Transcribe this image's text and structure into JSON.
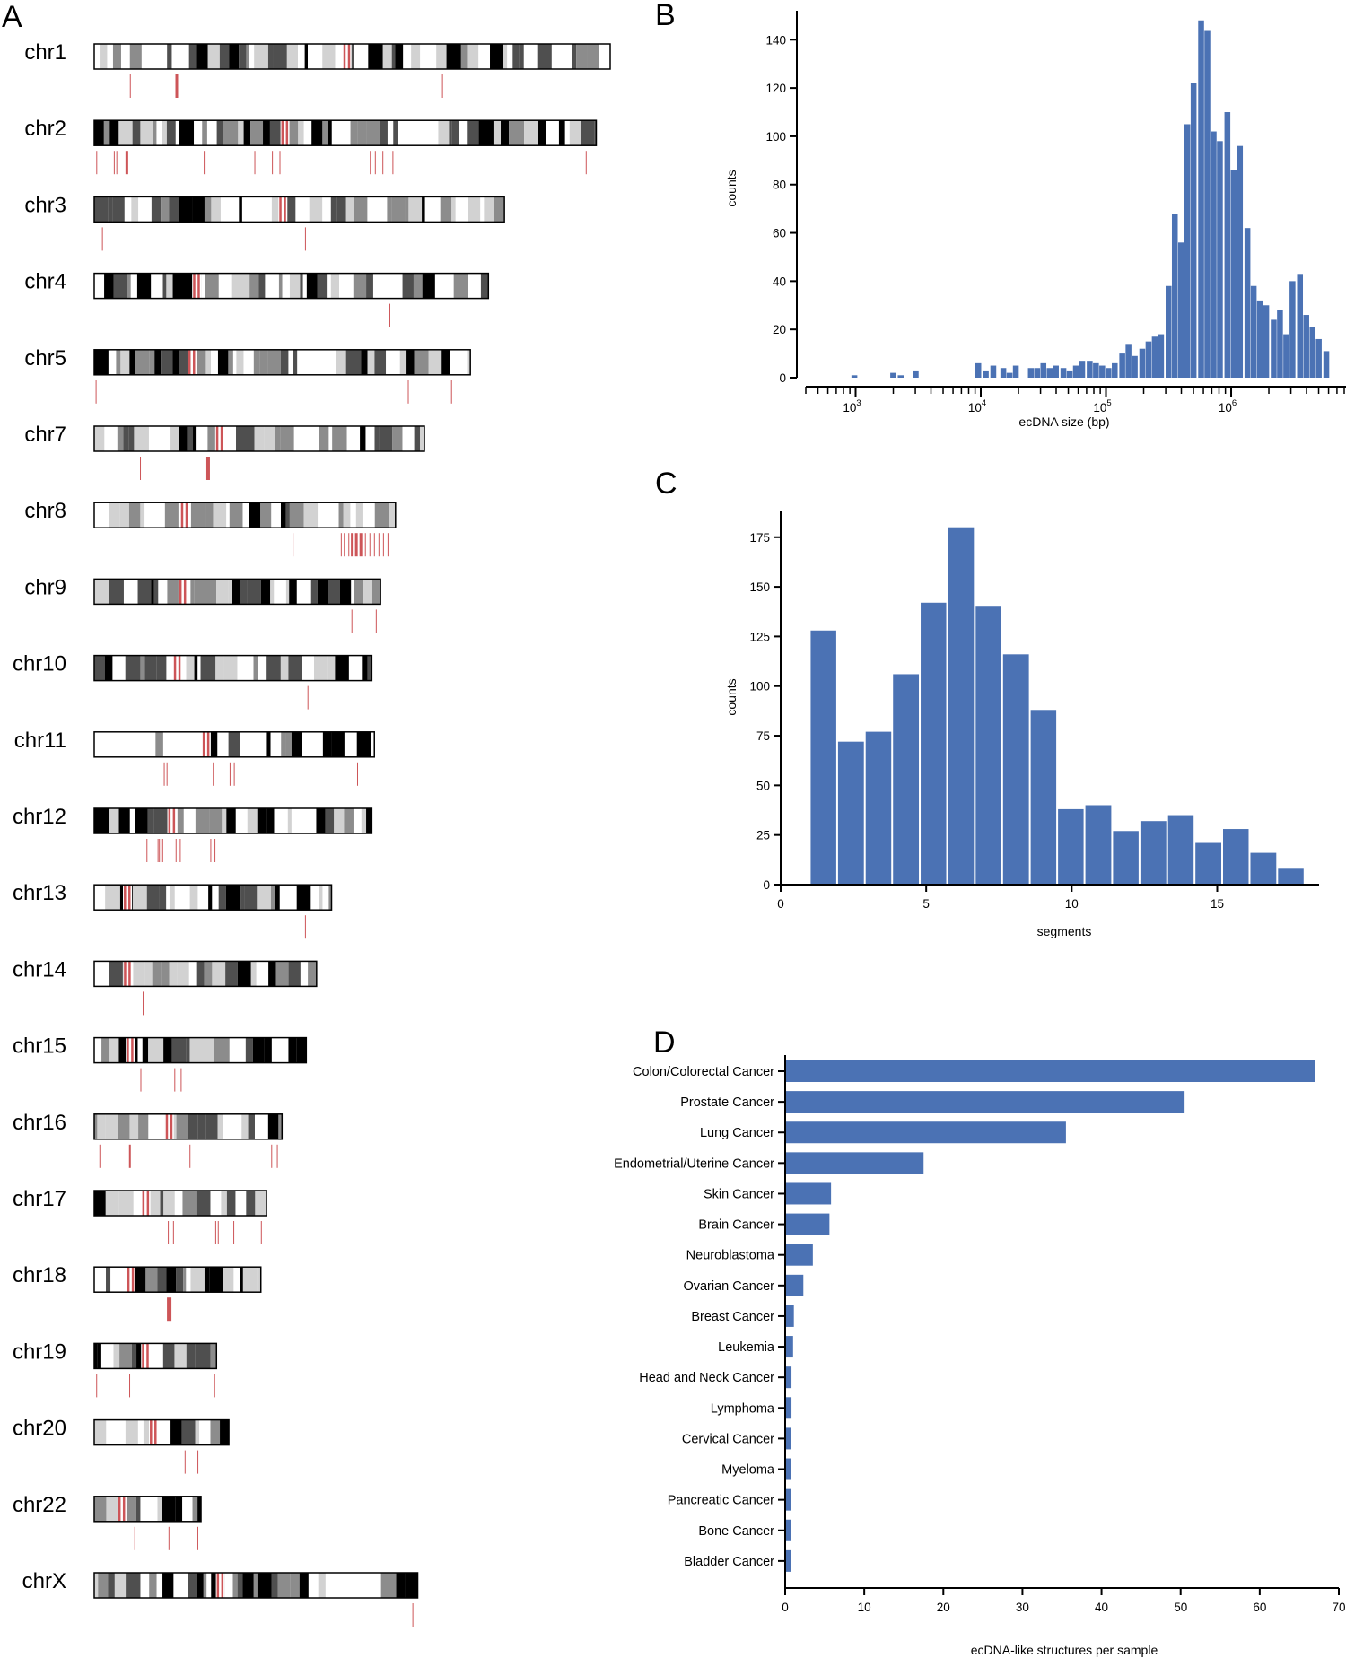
{
  "panel_labels": {
    "a": "A",
    "b": "B",
    "c": "C",
    "d": "D"
  },
  "colors": {
    "bar": "#4b72b4",
    "highlight": "#cd5558",
    "band_black": "#000000",
    "band_dark": "#4f4f4f",
    "band_mid": "#8c8c8c",
    "band_light": "#d2d2d2"
  },
  "chart_data": [
    {
      "type": "ideogram",
      "panel": "A",
      "chromosomes": [
        {
          "name": "chr1",
          "length": 1.0,
          "cent": 0.49,
          "seed": 3,
          "hits": [
            {
              "x": 0.07,
              "w": 1
            },
            {
              "x": 0.16,
              "w": 3
            },
            {
              "x": 0.675,
              "w": 1
            }
          ]
        },
        {
          "name": "chr2",
          "length": 0.973,
          "cent": 0.38,
          "seed": 7,
          "hits": [
            {
              "x": 0.005,
              "w": 1
            },
            {
              "x": 0.04,
              "w": 1
            },
            {
              "x": 0.045,
              "w": 1
            },
            {
              "x": 0.065,
              "w": 3
            },
            {
              "x": 0.22,
              "w": 2
            },
            {
              "x": 0.32,
              "w": 1
            },
            {
              "x": 0.355,
              "w": 1
            },
            {
              "x": 0.37,
              "w": 1
            },
            {
              "x": 0.55,
              "w": 1
            },
            {
              "x": 0.56,
              "w": 1
            },
            {
              "x": 0.575,
              "w": 1
            },
            {
              "x": 0.595,
              "w": 1
            },
            {
              "x": 0.98,
              "w": 1
            }
          ]
        },
        {
          "name": "chr3",
          "length": 0.795,
          "cent": 0.46,
          "seed": 11,
          "hits": [
            {
              "x": 0.02,
              "w": 1
            },
            {
              "x": 0.515,
              "w": 1
            }
          ]
        },
        {
          "name": "chr4",
          "length": 0.764,
          "cent": 0.26,
          "seed": 13,
          "hits": [
            {
              "x": 0.75,
              "w": 1
            }
          ]
        },
        {
          "name": "chr5",
          "length": 0.729,
          "cent": 0.26,
          "seed": 17,
          "hits": [
            {
              "x": 0.005,
              "w": 1
            },
            {
              "x": 0.835,
              "w": 1
            },
            {
              "x": 0.95,
              "w": 1
            }
          ]
        },
        {
          "name": "chr7",
          "length": 0.64,
          "cent": 0.38,
          "seed": 19,
          "hits": [
            {
              "x": 0.14,
              "w": 1
            },
            {
              "x": 0.345,
              "w": 4
            }
          ]
        },
        {
          "name": "chr8",
          "length": 0.584,
          "cent": 0.3,
          "seed": 23,
          "hits": [
            {
              "x": 0.66,
              "w": 1
            },
            {
              "x": 0.82,
              "w": 1
            },
            {
              "x": 0.83,
              "w": 1
            },
            {
              "x": 0.845,
              "w": 1
            },
            {
              "x": 0.855,
              "w": 2
            },
            {
              "x": 0.87,
              "w": 3
            },
            {
              "x": 0.885,
              "w": 3
            },
            {
              "x": 0.9,
              "w": 1
            },
            {
              "x": 0.915,
              "w": 1
            },
            {
              "x": 0.93,
              "w": 1
            },
            {
              "x": 0.945,
              "w": 1
            },
            {
              "x": 0.96,
              "w": 1
            },
            {
              "x": 0.975,
              "w": 1
            }
          ]
        },
        {
          "name": "chr9",
          "length": 0.555,
          "cent": 0.31,
          "seed": 29,
          "hits": [
            {
              "x": 0.9,
              "w": 1
            },
            {
              "x": 0.985,
              "w": 1
            }
          ]
        },
        {
          "name": "chr10",
          "length": 0.538,
          "cent": 0.3,
          "seed": 31,
          "hits": [
            {
              "x": 0.77,
              "w": 1
            }
          ]
        },
        {
          "name": "chr11",
          "length": 0.543,
          "cent": 0.4,
          "seed": 37,
          "hits": [
            {
              "x": 0.25,
              "w": 1
            },
            {
              "x": 0.26,
              "w": 1
            },
            {
              "x": 0.425,
              "w": 1
            },
            {
              "x": 0.485,
              "w": 1
            },
            {
              "x": 0.5,
              "w": 1
            },
            {
              "x": 0.94,
              "w": 1
            }
          ]
        },
        {
          "name": "chr12",
          "length": 0.538,
          "cent": 0.28,
          "seed": 41,
          "hits": [
            {
              "x": 0.19,
              "w": 1
            },
            {
              "x": 0.23,
              "w": 1
            },
            {
              "x": 0.235,
              "w": 1
            },
            {
              "x": 0.245,
              "w": 2
            },
            {
              "x": 0.295,
              "w": 1
            },
            {
              "x": 0.31,
              "w": 1
            },
            {
              "x": 0.42,
              "w": 1
            },
            {
              "x": 0.435,
              "w": 1
            }
          ]
        },
        {
          "name": "chr13",
          "length": 0.46,
          "cent": 0.14,
          "seed": 43,
          "hits": [
            {
              "x": 0.89,
              "w": 1
            }
          ]
        },
        {
          "name": "chr14",
          "length": 0.431,
          "cent": 0.15,
          "seed": 47,
          "hits": [
            {
              "x": 0.22,
              "w": 1
            }
          ]
        },
        {
          "name": "chr15",
          "length": 0.411,
          "cent": 0.17,
          "seed": 53,
          "hits": [
            {
              "x": 0.22,
              "w": 1
            },
            {
              "x": 0.38,
              "w": 1
            },
            {
              "x": 0.41,
              "w": 1
            }
          ]
        },
        {
          "name": "chr16",
          "length": 0.364,
          "cent": 0.4,
          "seed": 59,
          "hits": [
            {
              "x": 0.03,
              "w": 1
            },
            {
              "x": 0.19,
              "w": 2
            },
            {
              "x": 0.51,
              "w": 1
            },
            {
              "x": 0.945,
              "w": 1
            },
            {
              "x": 0.975,
              "w": 1
            }
          ]
        },
        {
          "name": "chr17",
          "length": 0.334,
          "cent": 0.3,
          "seed": 61,
          "hits": [
            {
              "x": 0.43,
              "w": 1
            },
            {
              "x": 0.46,
              "w": 1
            },
            {
              "x": 0.705,
              "w": 1
            },
            {
              "x": 0.72,
              "w": 1
            },
            {
              "x": 0.81,
              "w": 1
            },
            {
              "x": 0.97,
              "w": 1
            }
          ]
        },
        {
          "name": "chr18",
          "length": 0.323,
          "cent": 0.22,
          "seed": 67,
          "hits": [
            {
              "x": 0.45,
              "w": 5
            }
          ]
        },
        {
          "name": "chr19",
          "length": 0.237,
          "cent": 0.42,
          "seed": 71,
          "hits": [
            {
              "x": 0.02,
              "w": 1
            },
            {
              "x": 0.29,
              "w": 1
            },
            {
              "x": 0.985,
              "w": 1
            }
          ]
        },
        {
          "name": "chr20",
          "length": 0.261,
          "cent": 0.44,
          "seed": 73,
          "hits": [
            {
              "x": 0.675,
              "w": 1
            },
            {
              "x": 0.77,
              "w": 1
            }
          ]
        },
        {
          "name": "chr22",
          "length": 0.207,
          "cent": 0.26,
          "seed": 79,
          "hits": [
            {
              "x": 0.38,
              "w": 1
            },
            {
              "x": 0.7,
              "w": 1
            },
            {
              "x": 0.97,
              "w": 1
            }
          ]
        },
        {
          "name": "chrX",
          "length": 0.627,
          "cent": 0.39,
          "seed": 83,
          "hits": [
            {
              "x": 0.985,
              "w": 1
            }
          ]
        }
      ]
    },
    {
      "type": "bar",
      "panel": "B",
      "xlabel": "ecDNA size (bp)",
      "ylabel": "counts",
      "x_scale": "log",
      "xlim": [
        400,
        8000000
      ],
      "ylim": [
        0,
        152
      ],
      "yticks": [
        0,
        20,
        40,
        60,
        80,
        100,
        120,
        140
      ],
      "xtick_labels": [
        {
          "base": "10",
          "exp": "3",
          "value": 1000
        },
        {
          "base": "10",
          "exp": "4",
          "value": 10000
        },
        {
          "base": "10",
          "exp": "5",
          "value": 100000
        },
        {
          "base": "10",
          "exp": "6",
          "value": 1000000
        }
      ],
      "bin_width_log10": 0.0525,
      "bin_centers_log10": [
        2.99,
        3.3,
        3.36,
        3.48,
        3.98,
        4.04,
        4.1,
        4.18,
        4.23,
        4.28,
        4.4,
        4.45,
        4.5,
        4.55,
        4.6,
        4.66,
        4.71,
        4.76,
        4.81,
        4.87,
        4.92,
        4.97,
        5.02,
        5.07,
        5.13,
        5.18,
        5.23,
        5.29,
        5.34,
        5.39,
        5.44,
        5.5,
        5.55,
        5.6,
        5.65,
        5.7,
        5.76,
        5.81,
        5.86,
        5.91,
        5.97,
        6.02,
        6.07,
        6.13,
        6.18,
        6.23,
        6.28,
        6.34,
        6.39,
        6.44,
        6.49,
        6.55,
        6.6,
        6.65,
        6.7,
        6.76
      ],
      "values": [
        1,
        2,
        1,
        3,
        6,
        3,
        5,
        4,
        2,
        5,
        4,
        4,
        6,
        4,
        5,
        4,
        3,
        5,
        7,
        7,
        6,
        5,
        4,
        6,
        10,
        14,
        9,
        12,
        15,
        17,
        18,
        38,
        68,
        56,
        105,
        122,
        148,
        144,
        102,
        98,
        110,
        86,
        96,
        62,
        38,
        32,
        30,
        24,
        28,
        18,
        40,
        43,
        26,
        21,
        16,
        11
      ]
    },
    {
      "type": "bar",
      "panel": "C",
      "xlabel": "segments",
      "ylabel": "counts",
      "xlim": [
        0,
        18.5
      ],
      "ylim": [
        0,
        188
      ],
      "xticks": [
        0,
        5,
        10,
        15
      ],
      "yticks": [
        0,
        25,
        50,
        75,
        100,
        125,
        150,
        175
      ],
      "bin_edges": [
        1,
        1.94,
        2.89,
        3.83,
        4.78,
        5.72,
        6.67,
        7.61,
        8.56,
        9.5,
        10.44,
        11.39,
        12.33,
        13.28,
        14.22,
        15.17,
        16.11,
        17.06,
        18
      ],
      "values": [
        128,
        72,
        77,
        106,
        142,
        180,
        140,
        116,
        88,
        38,
        40,
        27,
        32,
        35,
        21,
        28,
        16,
        8
      ]
    },
    {
      "type": "bar",
      "orientation": "horizontal",
      "panel": "D",
      "xlabel": "ecDNA-like structures per sample",
      "ylabel": "",
      "xlim": [
        0,
        70
      ],
      "xticks": [
        0,
        10,
        20,
        30,
        40,
        50,
        60,
        70
      ],
      "categories": [
        "Colon/Colorectal Cancer",
        "Prostate Cancer",
        "Lung Cancer",
        "Endometrial/Uterine Cancer",
        "Skin Cancer",
        "Brain Cancer",
        "Neuroblastoma",
        "Ovarian Cancer",
        "Breast Cancer",
        "Leukemia",
        "Head and Neck Cancer",
        "Lymphoma",
        "Cervical Cancer",
        "Myeloma",
        "Pancreatic Cancer",
        "Bone Cancer",
        "Bladder Cancer"
      ],
      "values": [
        67.0,
        50.5,
        35.5,
        17.5,
        5.8,
        5.6,
        3.5,
        2.3,
        1.1,
        1.0,
        0.8,
        0.8,
        0.75,
        0.75,
        0.75,
        0.75,
        0.7
      ]
    }
  ]
}
